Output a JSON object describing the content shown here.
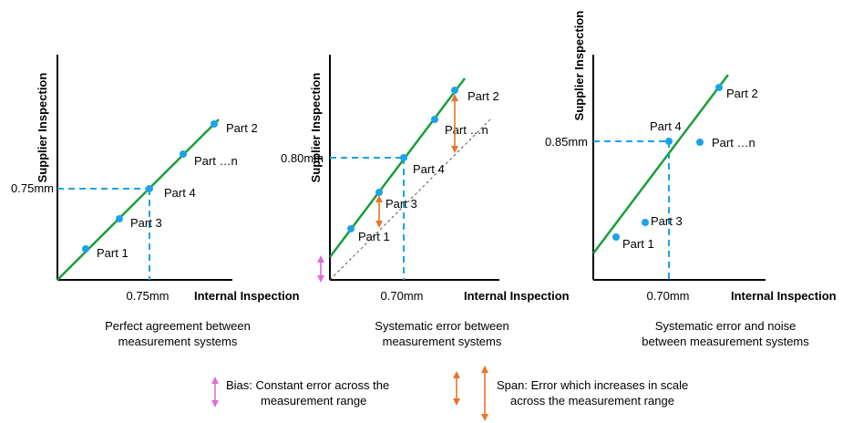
{
  "colors": {
    "fit_line": "#1a9e3c",
    "points": "#1aa3e8",
    "guide": "#1aa3e8",
    "bias_arrow": "#d76fd8",
    "span_arrow": "#e8742a",
    "axis": "#000000",
    "reference": "#555555"
  },
  "panels": [
    {
      "y_axis_title": "Supplier Inspection",
      "x_axis_title": "Internal Inspection",
      "x_value": "0.75mm",
      "y_value": "0.75mm",
      "caption_line1": "Perfect agreement between",
      "caption_line2": "measurement systems",
      "points": [
        "Part 1",
        "Part 3",
        "Part 4",
        "Part …n",
        "Part 2"
      ]
    },
    {
      "y_axis_title": "Supplier Inspection",
      "x_axis_title": "Internal Inspection",
      "x_value": "0.70mm",
      "y_value": "0.80mm",
      "caption_line1": "Systematic error between",
      "caption_line2": "measurement systems",
      "points": [
        "Part 1",
        "Part 3",
        "Part 4",
        "Part …n",
        "Part 2"
      ]
    },
    {
      "y_axis_title": "Supplier Inspection",
      "x_axis_title": "Internal Inspection",
      "x_value": "0.70mm",
      "y_value": "0.85mm",
      "caption_line1": "Systematic error and noise",
      "caption_line2": "between measurement systems",
      "points": [
        "Part 1",
        "Part 3",
        "Part 4",
        "Part …n",
        "Part 2"
      ]
    }
  ],
  "legend": {
    "bias_line1": "Bias: Constant error across the",
    "bias_line2": "measurement range",
    "span_line1": "Span: Error which increases in scale",
    "span_line2": "across the measurement range",
    "bias_icon": "double-arrow-icon",
    "span_icon": "double-arrow-icon"
  }
}
